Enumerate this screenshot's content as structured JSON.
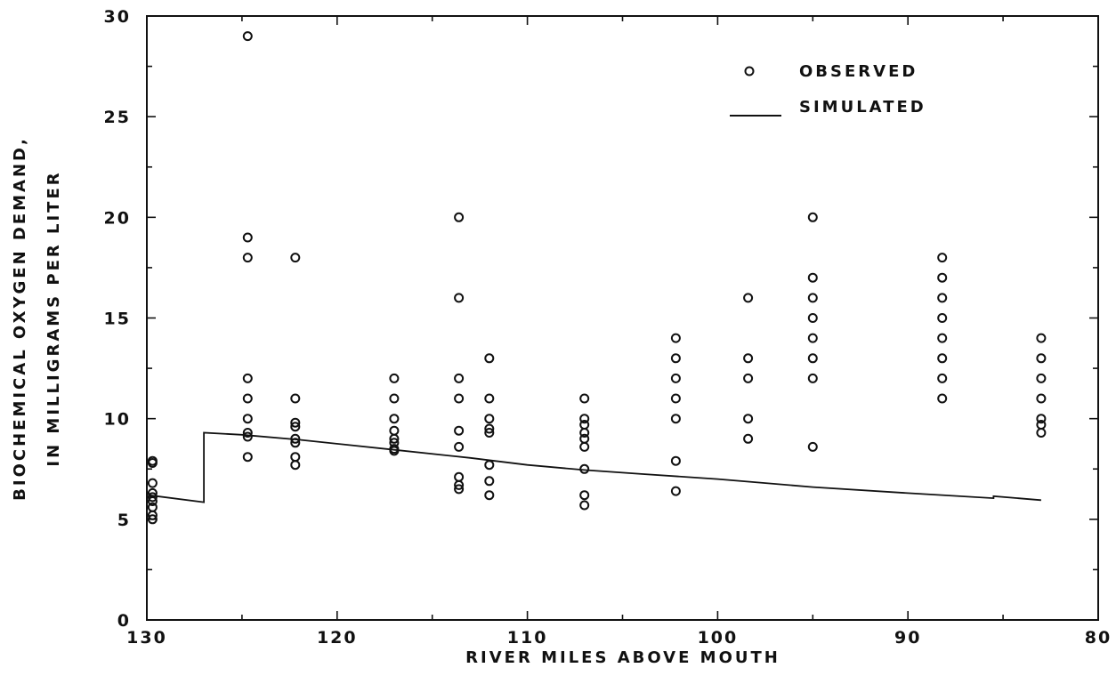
{
  "chart_data": {
    "type": "scatter",
    "title": "",
    "xlabel": "RIVER MILES ABOVE MOUTH",
    "ylabel_lines": [
      "BIOCHEMICAL OXYGEN DEMAND,",
      "IN MILLIGRAMS PER LITER"
    ],
    "xlim": [
      130,
      80
    ],
    "ylim": [
      0,
      30
    ],
    "x_ticks": [
      "130",
      "120",
      "110",
      "100",
      "90",
      "80"
    ],
    "y_ticks": [
      "0",
      "5",
      "10",
      "15",
      "20",
      "25",
      "30"
    ],
    "grid": false,
    "legend_position": "top-right",
    "legend": {
      "observed_label": "OBSERVED",
      "simulated_label": "SIMULATED"
    },
    "series": [
      {
        "name": "OBSERVED",
        "kind": "points",
        "points": [
          [
            129.7,
            7.9
          ],
          [
            129.7,
            7.8
          ],
          [
            129.7,
            6.8
          ],
          [
            129.7,
            6.3
          ],
          [
            129.7,
            6.1
          ],
          [
            129.7,
            5.9
          ],
          [
            129.7,
            5.6
          ],
          [
            129.7,
            5.2
          ],
          [
            129.7,
            5.0
          ],
          [
            124.7,
            29.0
          ],
          [
            124.7,
            19.0
          ],
          [
            124.7,
            18.0
          ],
          [
            124.7,
            12.0
          ],
          [
            124.7,
            11.0
          ],
          [
            124.7,
            10.0
          ],
          [
            124.7,
            9.3
          ],
          [
            124.7,
            9.1
          ],
          [
            124.7,
            8.1
          ],
          [
            122.2,
            18.0
          ],
          [
            122.2,
            11.0
          ],
          [
            122.2,
            9.8
          ],
          [
            122.2,
            9.6
          ],
          [
            122.2,
            9.0
          ],
          [
            122.2,
            8.8
          ],
          [
            122.2,
            8.1
          ],
          [
            122.2,
            7.7
          ],
          [
            117.0,
            12.0
          ],
          [
            117.0,
            11.0
          ],
          [
            117.0,
            10.0
          ],
          [
            117.0,
            9.4
          ],
          [
            117.0,
            9.0
          ],
          [
            117.0,
            8.8
          ],
          [
            117.0,
            8.5
          ],
          [
            117.0,
            8.4
          ],
          [
            113.6,
            20.0
          ],
          [
            113.6,
            16.0
          ],
          [
            113.6,
            12.0
          ],
          [
            113.6,
            11.0
          ],
          [
            113.6,
            9.4
          ],
          [
            113.6,
            8.6
          ],
          [
            113.6,
            7.1
          ],
          [
            113.6,
            6.7
          ],
          [
            113.6,
            6.5
          ],
          [
            112.0,
            13.0
          ],
          [
            112.0,
            11.0
          ],
          [
            112.0,
            10.0
          ],
          [
            112.0,
            9.5
          ],
          [
            112.0,
            9.3
          ],
          [
            112.0,
            7.7
          ],
          [
            112.0,
            6.9
          ],
          [
            112.0,
            6.2
          ],
          [
            107.0,
            11.0
          ],
          [
            107.0,
            10.0
          ],
          [
            107.0,
            9.7
          ],
          [
            107.0,
            9.3
          ],
          [
            107.0,
            9.0
          ],
          [
            107.0,
            8.6
          ],
          [
            107.0,
            7.5
          ],
          [
            107.0,
            6.2
          ],
          [
            107.0,
            5.7
          ],
          [
            102.2,
            14.0
          ],
          [
            102.2,
            13.0
          ],
          [
            102.2,
            12.0
          ],
          [
            102.2,
            11.0
          ],
          [
            102.2,
            10.0
          ],
          [
            102.2,
            7.9
          ],
          [
            102.2,
            6.4
          ],
          [
            98.4,
            16.0
          ],
          [
            98.4,
            13.0
          ],
          [
            98.4,
            12.0
          ],
          [
            98.4,
            10.0
          ],
          [
            98.4,
            9.0
          ],
          [
            95.0,
            20.0
          ],
          [
            95.0,
            17.0
          ],
          [
            95.0,
            16.0
          ],
          [
            95.0,
            15.0
          ],
          [
            95.0,
            14.0
          ],
          [
            95.0,
            13.0
          ],
          [
            95.0,
            12.0
          ],
          [
            95.0,
            8.6
          ],
          [
            88.2,
            18.0
          ],
          [
            88.2,
            17.0
          ],
          [
            88.2,
            16.0
          ],
          [
            88.2,
            15.0
          ],
          [
            88.2,
            14.0
          ],
          [
            88.2,
            13.0
          ],
          [
            88.2,
            12.0
          ],
          [
            88.2,
            11.0
          ],
          [
            83.0,
            14.0
          ],
          [
            83.0,
            13.0
          ],
          [
            83.0,
            12.0
          ],
          [
            83.0,
            11.0
          ],
          [
            83.0,
            10.0
          ],
          [
            83.0,
            9.7
          ],
          [
            83.0,
            9.3
          ]
        ]
      },
      {
        "name": "SIMULATED",
        "kind": "line",
        "points": [
          [
            129.9,
            6.2
          ],
          [
            127.0,
            5.85
          ],
          [
            127.0,
            9.3
          ],
          [
            125.0,
            9.2
          ],
          [
            122.0,
            8.95
          ],
          [
            117.0,
            8.45
          ],
          [
            113.0,
            8.05
          ],
          [
            110.0,
            7.7
          ],
          [
            107.0,
            7.45
          ],
          [
            104.0,
            7.25
          ],
          [
            100.0,
            7.0
          ],
          [
            95.0,
            6.6
          ],
          [
            90.0,
            6.3
          ],
          [
            85.5,
            6.05
          ],
          [
            85.5,
            6.15
          ],
          [
            83.0,
            5.95
          ]
        ]
      }
    ]
  }
}
